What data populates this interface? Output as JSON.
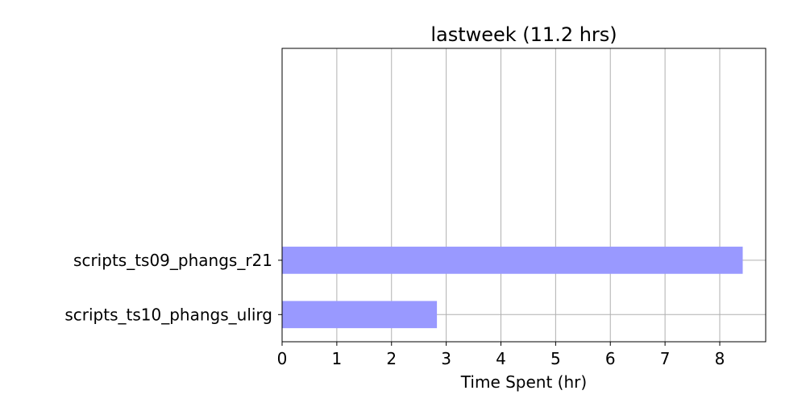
{
  "chart_data": {
    "type": "bar",
    "orientation": "horizontal",
    "title": "lastweek (11.2 hrs)",
    "xlabel": "Time Spent (hr)",
    "ylabel": "",
    "categories": [
      "scripts_ts09_phangs_r21",
      "scripts_ts10_phangs_ulirg"
    ],
    "values": [
      8.42,
      2.83
    ],
    "xlim": [
      0,
      8.84
    ],
    "xticks": [
      "0",
      "1",
      "2",
      "3",
      "4",
      "5",
      "6",
      "7",
      "8"
    ],
    "grid": true,
    "bar_color": "#9999ff",
    "grid_color": "#b0b0b0",
    "legend": "none"
  }
}
